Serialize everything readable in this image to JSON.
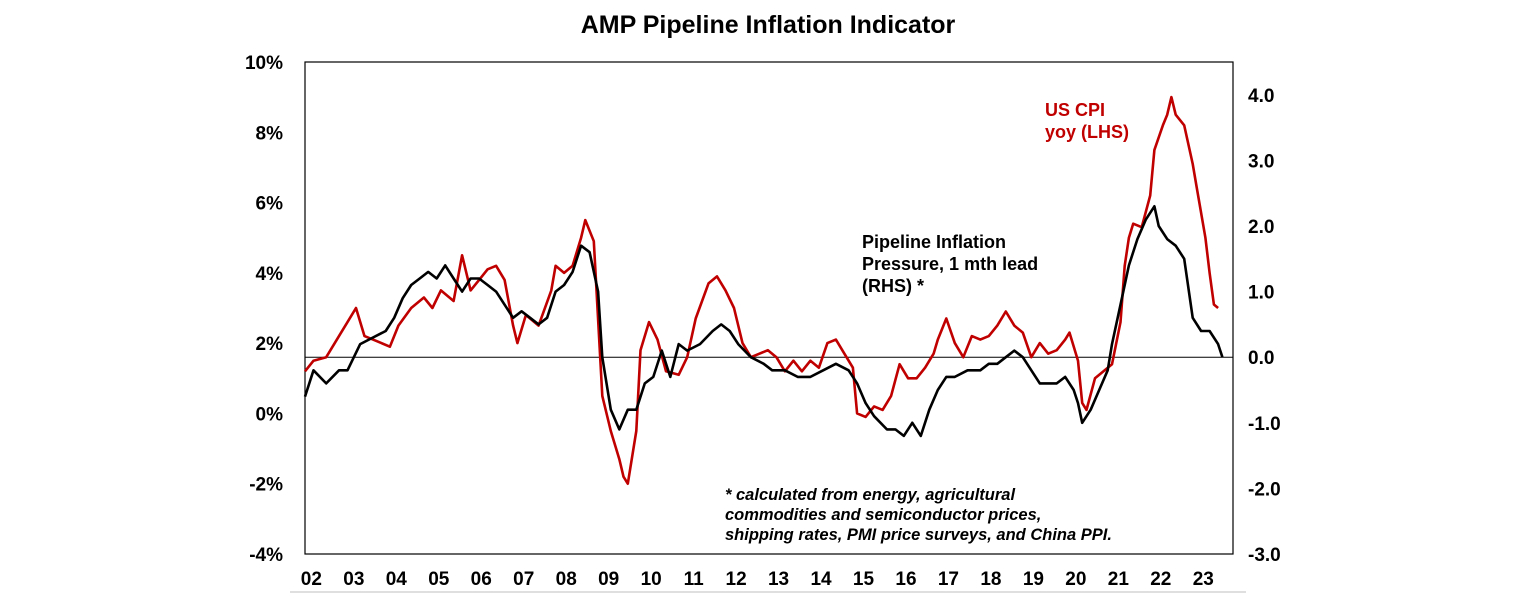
{
  "chart_data": {
    "type": "line",
    "title": "AMP Pipeline Inflation Indicator",
    "x_tick_labels": [
      "02",
      "03",
      "04",
      "05",
      "06",
      "07",
      "08",
      "09",
      "10",
      "11",
      "12",
      "13",
      "14",
      "15",
      "16",
      "17",
      "18",
      "19",
      "20",
      "21",
      "22",
      "23"
    ],
    "xlim": [
      2002.0,
      2023.85
    ],
    "left_axis": {
      "ylim": [
        -4,
        10
      ],
      "tick_labels": [
        "10%",
        "8%",
        "6%",
        "4%",
        "2%",
        "0%",
        "-2%",
        "-4%"
      ],
      "tick_values": [
        10,
        8,
        6,
        4,
        2,
        0,
        -2,
        -4
      ]
    },
    "right_axis": {
      "ylim": [
        -3.0,
        4.5
      ],
      "tick_labels": [
        "4.0",
        "3.0",
        "2.0",
        "1.0",
        "0.0",
        "-1.0",
        "-2.0",
        "-3.0"
      ],
      "tick_values": [
        4,
        3,
        2,
        1,
        0,
        -1,
        -2,
        -3
      ]
    },
    "zero_line_right": 0.0,
    "series": [
      {
        "name": "US CPI yoy (LHS)",
        "axis": "left",
        "color": "#c00000",
        "label_lines": [
          "US CPI",
          "yoy (LHS)"
        ],
        "x": [
          2002.0,
          2002.2,
          2002.5,
          2002.8,
          2003.0,
          2003.2,
          2003.4,
          2003.6,
          2003.8,
          2004.0,
          2004.2,
          2004.5,
          2004.8,
          2005.0,
          2005.2,
          2005.5,
          2005.7,
          2005.9,
          2006.1,
          2006.3,
          2006.5,
          2006.7,
          2006.9,
          2007.0,
          2007.2,
          2007.5,
          2007.8,
          2007.9,
          2008.1,
          2008.3,
          2008.5,
          2008.6,
          2008.8,
          2009.0,
          2009.2,
          2009.4,
          2009.5,
          2009.6,
          2009.8,
          2009.9,
          2010.1,
          2010.3,
          2010.5,
          2010.8,
          2011.0,
          2011.2,
          2011.5,
          2011.7,
          2011.9,
          2012.1,
          2012.3,
          2012.5,
          2012.7,
          2012.9,
          2013.1,
          2013.3,
          2013.5,
          2013.7,
          2013.9,
          2014.1,
          2014.3,
          2014.5,
          2014.7,
          2014.9,
          2015.0,
          2015.2,
          2015.4,
          2015.6,
          2015.8,
          2016.0,
          2016.2,
          2016.4,
          2016.6,
          2016.8,
          2016.9,
          2017.1,
          2017.3,
          2017.5,
          2017.7,
          2017.9,
          2018.1,
          2018.3,
          2018.5,
          2018.7,
          2018.9,
          2019.1,
          2019.3,
          2019.5,
          2019.7,
          2019.9,
          2020.0,
          2020.2,
          2020.3,
          2020.4,
          2020.6,
          2020.8,
          2021.0,
          2021.2,
          2021.3,
          2021.4,
          2021.5,
          2021.7,
          2021.9,
          2022.0,
          2022.2,
          2022.3,
          2022.4,
          2022.5,
          2022.7,
          2022.9,
          2023.0,
          2023.2,
          2023.3,
          2023.4,
          2023.5
        ],
        "values": [
          1.2,
          1.5,
          1.6,
          2.2,
          2.6,
          3.0,
          2.2,
          2.1,
          2.0,
          1.9,
          2.5,
          3.0,
          3.3,
          3.0,
          3.5,
          3.2,
          4.5,
          3.5,
          3.8,
          4.1,
          4.2,
          3.8,
          2.5,
          2.0,
          2.8,
          2.5,
          3.5,
          4.2,
          4.0,
          4.2,
          5.0,
          5.5,
          4.9,
          0.5,
          -0.5,
          -1.3,
          -1.8,
          -2.0,
          -0.5,
          1.8,
          2.6,
          2.1,
          1.2,
          1.1,
          1.6,
          2.7,
          3.7,
          3.9,
          3.5,
          3.0,
          2.0,
          1.6,
          1.7,
          1.8,
          1.6,
          1.2,
          1.5,
          1.2,
          1.5,
          1.3,
          2.0,
          2.1,
          1.7,
          1.3,
          0.0,
          -0.1,
          0.2,
          0.1,
          0.5,
          1.4,
          1.0,
          1.0,
          1.3,
          1.7,
          2.1,
          2.7,
          2.0,
          1.6,
          2.2,
          2.1,
          2.2,
          2.5,
          2.9,
          2.5,
          2.3,
          1.6,
          2.0,
          1.7,
          1.8,
          2.1,
          2.3,
          1.5,
          0.3,
          0.1,
          1.0,
          1.2,
          1.4,
          2.6,
          4.2,
          5.0,
          5.4,
          5.3,
          6.2,
          7.5,
          8.2,
          8.5,
          9.0,
          8.5,
          8.2,
          7.1,
          6.4,
          5.0,
          4.0,
          3.1,
          3.0
        ]
      },
      {
        "name": "Pipeline Inflation Pressure, 1 mth lead (RHS) *",
        "axis": "right",
        "color": "#000000",
        "label_lines": [
          "Pipeline Inflation",
          "Pressure, 1 mth lead",
          "(RHS) *"
        ],
        "x": [
          2002.0,
          2002.2,
          2002.5,
          2002.8,
          2003.0,
          2003.3,
          2003.6,
          2003.9,
          2004.1,
          2004.3,
          2004.5,
          2004.7,
          2004.9,
          2005.1,
          2005.3,
          2005.5,
          2005.7,
          2005.9,
          2006.1,
          2006.3,
          2006.5,
          2006.7,
          2006.9,
          2007.1,
          2007.3,
          2007.5,
          2007.7,
          2007.9,
          2008.1,
          2008.3,
          2008.5,
          2008.7,
          2008.9,
          2009.0,
          2009.2,
          2009.4,
          2009.6,
          2009.8,
          2010.0,
          2010.2,
          2010.4,
          2010.6,
          2010.8,
          2011.0,
          2011.3,
          2011.6,
          2011.8,
          2012.0,
          2012.2,
          2012.5,
          2012.8,
          2013.0,
          2013.3,
          2013.6,
          2013.9,
          2014.2,
          2014.5,
          2014.8,
          2015.0,
          2015.2,
          2015.4,
          2015.7,
          2015.9,
          2016.1,
          2016.3,
          2016.5,
          2016.7,
          2016.9,
          2017.1,
          2017.3,
          2017.6,
          2017.9,
          2018.1,
          2018.3,
          2018.5,
          2018.7,
          2018.9,
          2019.1,
          2019.3,
          2019.5,
          2019.7,
          2019.9,
          2020.1,
          2020.2,
          2020.3,
          2020.5,
          2020.7,
          2020.9,
          2021.0,
          2021.2,
          2021.4,
          2021.6,
          2021.8,
          2022.0,
          2022.1,
          2022.3,
          2022.5,
          2022.7,
          2022.9,
          2023.1,
          2023.3,
          2023.5,
          2023.6
        ],
        "values": [
          -0.6,
          -0.2,
          -0.4,
          -0.2,
          -0.2,
          0.2,
          0.3,
          0.4,
          0.6,
          0.9,
          1.1,
          1.2,
          1.3,
          1.2,
          1.4,
          1.2,
          1.0,
          1.2,
          1.2,
          1.1,
          1.0,
          0.8,
          0.6,
          0.7,
          0.6,
          0.5,
          0.6,
          1.0,
          1.1,
          1.3,
          1.7,
          1.6,
          1.0,
          0.0,
          -0.8,
          -1.1,
          -0.8,
          -0.8,
          -0.4,
          -0.3,
          0.1,
          -0.3,
          0.2,
          0.1,
          0.2,
          0.4,
          0.5,
          0.4,
          0.2,
          0.0,
          -0.1,
          -0.2,
          -0.2,
          -0.3,
          -0.3,
          -0.2,
          -0.1,
          -0.2,
          -0.4,
          -0.7,
          -0.9,
          -1.1,
          -1.1,
          -1.2,
          -1.0,
          -1.2,
          -0.8,
          -0.5,
          -0.3,
          -0.3,
          -0.2,
          -0.2,
          -0.1,
          -0.1,
          0.0,
          0.1,
          0.0,
          -0.2,
          -0.4,
          -0.4,
          -0.4,
          -0.3,
          -0.5,
          -0.7,
          -1.0,
          -0.8,
          -0.5,
          -0.2,
          0.2,
          0.8,
          1.4,
          1.8,
          2.1,
          2.3,
          2.0,
          1.8,
          1.7,
          1.5,
          0.6,
          0.4,
          0.4,
          0.2,
          0.0
        ]
      }
    ],
    "footnote_lines": [
      "* calculated from energy, agricultural",
      "commodities and semiconductor prices,",
      "shipping rates, PMI price surveys, and China PPI."
    ]
  }
}
